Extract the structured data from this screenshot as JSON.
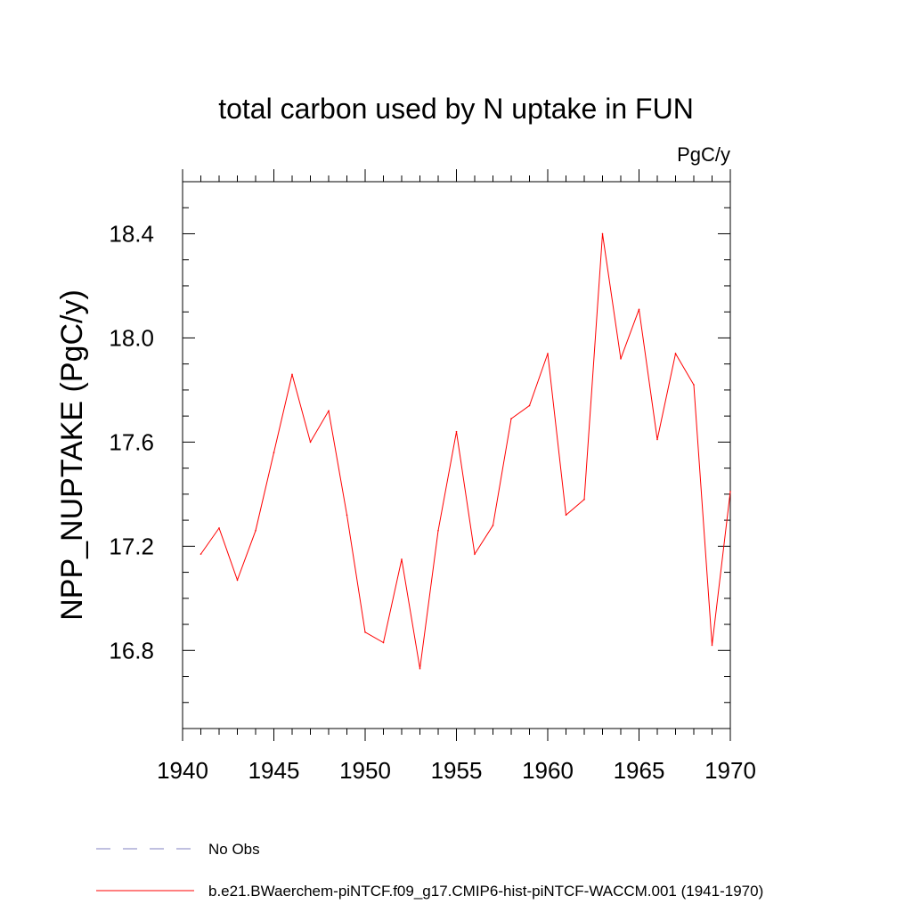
{
  "chart_data": {
    "type": "line",
    "title": "total carbon used by N uptake in FUN",
    "units_label": "PgC/y",
    "ylabel": "NPP_NUPTAKE  (PgC/y)",
    "xlabel": "",
    "xlim": [
      1940,
      1970
    ],
    "ylim": [
      16.5,
      18.6
    ],
    "x_ticks": [
      1940,
      1945,
      1950,
      1955,
      1960,
      1965,
      1970
    ],
    "y_ticks": [
      16.8,
      17.2,
      17.6,
      18.0,
      18.4
    ],
    "y_tick_labels": [
      "16.8",
      "17.2",
      "17.6",
      "18.0",
      "18.4"
    ],
    "x_minor_step": 1,
    "y_minor_step": 0.1,
    "grid": false,
    "series": [
      {
        "name": "b.e21.BWaerchem-piNTCF.f09_g17.CMIP6-hist-piNTCF-WACCM.001 (1941-1970)",
        "color": "#ff0000",
        "x": [
          1941,
          1942,
          1943,
          1944,
          1945,
          1946,
          1947,
          1948,
          1949,
          1950,
          1951,
          1952,
          1953,
          1954,
          1955,
          1956,
          1957,
          1958,
          1959,
          1960,
          1961,
          1962,
          1963,
          1964,
          1965,
          1966,
          1967,
          1968,
          1969,
          1970
        ],
        "y": [
          17.17,
          17.27,
          17.07,
          17.26,
          17.56,
          17.86,
          17.6,
          17.72,
          17.32,
          16.87,
          16.83,
          17.15,
          16.73,
          17.26,
          17.64,
          17.17,
          17.28,
          17.69,
          17.74,
          17.94,
          17.32,
          17.38,
          18.4,
          17.92,
          18.11,
          17.61,
          17.94,
          17.82,
          16.82,
          17.41
        ]
      }
    ],
    "legend": [
      {
        "label": "No Obs",
        "style": "dashed",
        "color": "#8080c0"
      },
      {
        "label": "b.e21.BWaerchem-piNTCF.f09_g17.CMIP6-hist-piNTCF-WACCM.001 (1941-1970)",
        "style": "solid",
        "color": "#ff0000"
      }
    ],
    "legend_position": "bottom-left"
  }
}
